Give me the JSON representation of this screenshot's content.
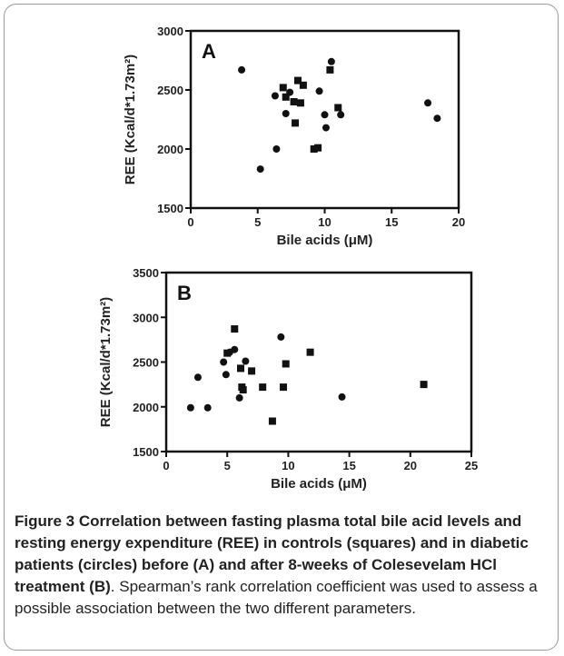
{
  "figure": {
    "caption_title": "Figure 3 Correlation between fasting plasma total bile acid levels and resting energy expenditure (REE) in controls (squares) and in diabetic patients (circles) before (A) and after 8-weeks of Colesevelam HCl treatment (B)",
    "caption_body": ". Spearman’s rank correlation coefficient was used to assess a possible association between the two different parameters."
  },
  "chart_data": [
    {
      "type": "scatter",
      "panel_label": "A",
      "xlabel": "Bile acids (μM)",
      "ylabel": "REE (Kcal/d*1.73m²)",
      "xlim": [
        0,
        20
      ],
      "ylim": [
        1500,
        3000
      ],
      "xticks": [
        0,
        5,
        10,
        15,
        20
      ],
      "yticks": [
        1500,
        2000,
        2500,
        3000
      ],
      "grid": false,
      "series": [
        {
          "marker": "square",
          "points": [
            [
              6.9,
              2520
            ],
            [
              7.1,
              2440
            ],
            [
              7.7,
              2400
            ],
            [
              7.8,
              2220
            ],
            [
              8.0,
              2580
            ],
            [
              8.2,
              2390
            ],
            [
              8.4,
              2540
            ],
            [
              9.2,
              2000
            ],
            [
              9.5,
              2010
            ],
            [
              10.4,
              2670
            ],
            [
              11.0,
              2350
            ]
          ]
        },
        {
          "marker": "circle",
          "points": [
            [
              3.8,
              2670
            ],
            [
              5.2,
              1830
            ],
            [
              6.3,
              2450
            ],
            [
              6.4,
              2000
            ],
            [
              7.1,
              2300
            ],
            [
              7.4,
              2480
            ],
            [
              9.6,
              2490
            ],
            [
              10.0,
              2290
            ],
            [
              10.1,
              2180
            ],
            [
              10.5,
              2740
            ],
            [
              11.2,
              2290
            ],
            [
              17.7,
              2390
            ],
            [
              18.4,
              2260
            ]
          ]
        }
      ]
    },
    {
      "type": "scatter",
      "panel_label": "B",
      "xlabel": "Bile acids (μM)",
      "ylabel": "REE (Kcal/d*1.73m²)",
      "xlim": [
        0,
        25
      ],
      "ylim": [
        1500,
        3500
      ],
      "xticks": [
        0,
        5,
        10,
        15,
        20,
        25
      ],
      "yticks": [
        1500,
        2000,
        2500,
        3000,
        3500
      ],
      "grid": false,
      "series": [
        {
          "marker": "square",
          "points": [
            [
              5.0,
              2600
            ],
            [
              5.6,
              2870
            ],
            [
              6.1,
              2430
            ],
            [
              6.2,
              2220
            ],
            [
              6.3,
              2190
            ],
            [
              7.0,
              2400
            ],
            [
              7.9,
              2220
            ],
            [
              8.7,
              1840
            ],
            [
              9.6,
              2220
            ],
            [
              9.8,
              2480
            ],
            [
              11.8,
              2610
            ],
            [
              21.1,
              2250
            ]
          ]
        },
        {
          "marker": "circle",
          "points": [
            [
              2.0,
              1990
            ],
            [
              2.6,
              2330
            ],
            [
              3.4,
              1990
            ],
            [
              4.7,
              2500
            ],
            [
              4.9,
              2360
            ],
            [
              5.2,
              2610
            ],
            [
              5.6,
              2640
            ],
            [
              6.0,
              2100
            ],
            [
              6.5,
              2510
            ],
            [
              9.4,
              2780
            ],
            [
              14.4,
              2110
            ]
          ]
        }
      ]
    }
  ]
}
